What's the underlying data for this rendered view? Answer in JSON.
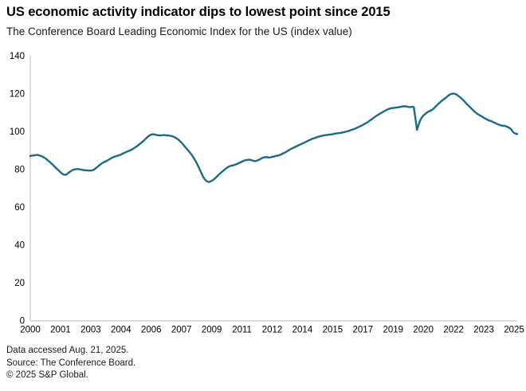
{
  "header": {
    "title": "US economic activity indicator dips to lowest point since 2015",
    "subtitle": "The Conference Board Leading Economic Index for the US (index value)"
  },
  "footer": {
    "accessed": "Data accessed Aug. 21, 2025.",
    "source": "Source: The Conference Board.",
    "copyright": "© 2025 S&P Global."
  },
  "chart_data": {
    "type": "line",
    "title": "US economic activity indicator dips to lowest point since 2015",
    "subtitle": "The Conference Board Leading Economic Index for the US (index value)",
    "xlabel": "",
    "ylabel": "index value",
    "ylim": [
      0,
      140
    ],
    "yticks": [
      0,
      20,
      40,
      60,
      80,
      100,
      120,
      140
    ],
    "xtick_labels": [
      "2000",
      "2001",
      "2003",
      "2004",
      "2006",
      "2007",
      "2009",
      "2011",
      "2012",
      "2014",
      "2015",
      "2017",
      "2019",
      "2020",
      "2022",
      "2023",
      "2025"
    ],
    "xtick_month_index": [
      0,
      19,
      38,
      57,
      76,
      95,
      114,
      133,
      152,
      171,
      190,
      209,
      228,
      247,
      266,
      285,
      304
    ],
    "x_start": "2000-01",
    "x_end": "2025-07",
    "frequency": "monthly",
    "grid": false,
    "legend": "none",
    "line_color": "#1a6b87",
    "axis_color": "#c9cacb",
    "text_color": "#000000",
    "series": [
      {
        "name": "The Conference Board Leading Economic Index for the US",
        "values": [
          87.0,
          87.2,
          87.3,
          87.4,
          87.6,
          87.5,
          87.2,
          86.9,
          86.5,
          86.0,
          85.4,
          84.7,
          84.0,
          83.2,
          82.4,
          81.6,
          80.8,
          80.0,
          79.2,
          78.4,
          77.7,
          77.2,
          77.0,
          77.4,
          78.1,
          78.7,
          79.3,
          79.7,
          79.9,
          80.1,
          80.1,
          80.0,
          79.8,
          79.6,
          79.5,
          79.4,
          79.4,
          79.3,
          79.3,
          79.4,
          79.8,
          80.4,
          81.1,
          81.8,
          82.5,
          83.1,
          83.6,
          84.0,
          84.4,
          84.9,
          85.4,
          85.9,
          86.3,
          86.6,
          86.9,
          87.2,
          87.5,
          87.8,
          88.2,
          88.6,
          89.0,
          89.4,
          89.7,
          90.1,
          90.5,
          91.0,
          91.6,
          92.2,
          92.8,
          93.5,
          94.2,
          94.9,
          95.7,
          96.5,
          97.3,
          97.9,
          98.3,
          98.5,
          98.4,
          98.2,
          98.0,
          97.9,
          97.9,
          98.0,
          98.1,
          98.0,
          97.9,
          97.8,
          97.7,
          97.5,
          97.2,
          96.8,
          96.3,
          95.7,
          94.9,
          94.1,
          93.1,
          92.1,
          91.1,
          90.1,
          89.1,
          88.1,
          86.9,
          85.5,
          84.1,
          82.5,
          80.7,
          78.9,
          77.1,
          75.5,
          74.3,
          73.6,
          73.3,
          73.4,
          73.8,
          74.4,
          75.1,
          75.9,
          76.7,
          77.5,
          78.3,
          79.0,
          79.7,
          80.4,
          81.0,
          81.5,
          81.8,
          82.0,
          82.2,
          82.5,
          82.8,
          83.2,
          83.6,
          84.0,
          84.4,
          84.7,
          84.9,
          85.0,
          85.0,
          84.8,
          84.5,
          84.3,
          84.4,
          84.7,
          85.1,
          85.6,
          86.0,
          86.3,
          86.4,
          86.3,
          86.2,
          86.3,
          86.5,
          86.7,
          86.9,
          87.1,
          87.3,
          87.6,
          88.0,
          88.4,
          88.8,
          89.3,
          89.8,
          90.3,
          90.8,
          91.2,
          91.6,
          92.0,
          92.4,
          92.8,
          93.2,
          93.6,
          94.0,
          94.4,
          94.8,
          95.2,
          95.6,
          96.0,
          96.3,
          96.6,
          96.9,
          97.2,
          97.4,
          97.6,
          97.8,
          98.0,
          98.1,
          98.2,
          98.3,
          98.4,
          98.5,
          98.7,
          98.9,
          99.0,
          99.1,
          99.2,
          99.4,
          99.6,
          99.8,
          100.0,
          100.2,
          100.5,
          100.8,
          101.1,
          101.4,
          101.8,
          102.2,
          102.6,
          103.0,
          103.4,
          103.9,
          104.4,
          104.9,
          105.5,
          106.1,
          106.7,
          107.3,
          107.9,
          108.5,
          109.0,
          109.5,
          110.0,
          110.5,
          111.0,
          111.4,
          111.8,
          112.1,
          112.3,
          112.4,
          112.5,
          112.6,
          112.7,
          112.9,
          113.0,
          113.2,
          113.3,
          113.2,
          113.0,
          112.9,
          112.9,
          113.0,
          112.9,
          107.0,
          100.8,
          103.5,
          105.8,
          107.3,
          108.4,
          109.1,
          109.8,
          110.4,
          110.8,
          111.2,
          111.7,
          112.5,
          113.4,
          114.2,
          115.0,
          115.8,
          116.5,
          117.1,
          117.7,
          118.4,
          119.1,
          119.6,
          119.9,
          120.0,
          119.8,
          119.4,
          118.8,
          118.1,
          117.4,
          116.6,
          115.7,
          114.8,
          113.9,
          113.1,
          112.3,
          111.4,
          110.6,
          109.9,
          109.2,
          108.7,
          108.3,
          107.8,
          107.2,
          106.7,
          106.3,
          105.8,
          105.6,
          105.3,
          104.9,
          104.5,
          104.1,
          103.7,
          103.4,
          103.1,
          102.9,
          103.0,
          102.7,
          102.3,
          101.9,
          101.3,
          100.1,
          99.2,
          98.8,
          98.6
        ]
      }
    ]
  }
}
